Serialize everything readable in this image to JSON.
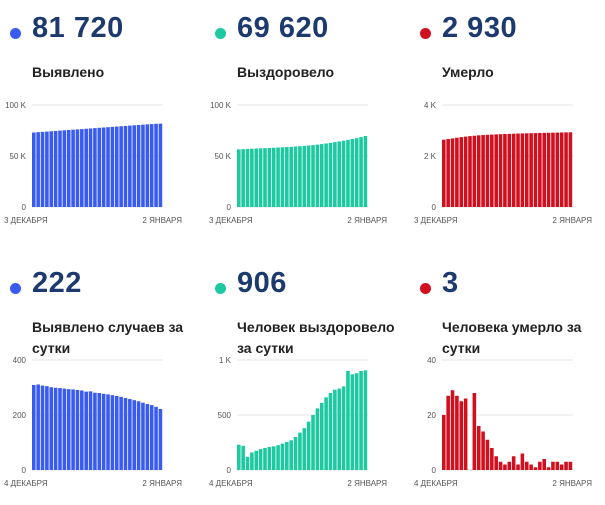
{
  "panels": [
    {
      "value": "81 720",
      "label": "Выявлено",
      "color": "#3a5bf0",
      "chart_data": {
        "type": "bar",
        "ylim": [
          0,
          100000
        ],
        "yticks": [
          {
            "v": 0,
            "label": "0"
          },
          {
            "v": 50000,
            "label": "50 K"
          },
          {
            "v": 100000,
            "label": "100 K"
          }
        ],
        "xlabel_start": "3 ДЕКАБРЯ",
        "xlabel_end": "2 ЯНВАРЯ",
        "values": [
          73030,
          73340,
          73640,
          73950,
          74260,
          74560,
          74870,
          75180,
          75480,
          75790,
          76100,
          76400,
          76710,
          77020,
          77320,
          77630,
          77940,
          78240,
          78550,
          78860,
          79160,
          79470,
          79780,
          80080,
          80390,
          80700,
          81000,
          81310,
          81620,
          81720
        ]
      }
    },
    {
      "value": "69 620",
      "label": "Выздоровело",
      "color": "#1dc9a0",
      "chart_data": {
        "type": "bar",
        "ylim": [
          0,
          100000
        ],
        "yticks": [
          {
            "v": 0,
            "label": "0"
          },
          {
            "v": 50000,
            "label": "50 K"
          },
          {
            "v": 100000,
            "label": "100 K"
          }
        ],
        "xlabel_start": "3 ДЕКАБРЯ",
        "xlabel_end": "2 ЯНВАРЯ",
        "values": [
          56500,
          56700,
          56900,
          57100,
          57300,
          57500,
          57700,
          57900,
          58100,
          58300,
          58500,
          58750,
          59000,
          59300,
          59600,
          59900,
          60300,
          60700,
          61200,
          61700,
          62300,
          62900,
          63600,
          64300,
          65000,
          65800,
          66600,
          67500,
          68500,
          69620
        ]
      }
    },
    {
      "value": "2 930",
      "label": "Умерло",
      "color": "#d0101e",
      "chart_data": {
        "type": "bar",
        "ylim": [
          0,
          4000
        ],
        "yticks": [
          {
            "v": 0,
            "label": "0"
          },
          {
            "v": 2000,
            "label": "2 K"
          },
          {
            "v": 4000,
            "label": "4 K"
          }
        ],
        "xlabel_start": "3 ДЕКАБРЯ",
        "xlabel_end": "2 ЯНВАРЯ",
        "values": [
          2640,
          2665,
          2690,
          2715,
          2740,
          2760,
          2780,
          2795,
          2810,
          2822,
          2832,
          2840,
          2848,
          2855,
          2862,
          2868,
          2874,
          2880,
          2885,
          2890,
          2895,
          2899,
          2903,
          2907,
          2911,
          2915,
          2919,
          2923,
          2927,
          2930
        ]
      }
    },
    {
      "value": "222",
      "label": "Выявлено случаев за сутки",
      "color": "#3a5bf0",
      "chart_data": {
        "type": "bar",
        "ylim": [
          0,
          400
        ],
        "yticks": [
          {
            "v": 0,
            "label": "0"
          },
          {
            "v": 200,
            "label": "200"
          },
          {
            "v": 400,
            "label": "400"
          }
        ],
        "xlabel_start": "4 ДЕКАБРЯ",
        "xlabel_end": "2 ЯНВАРЯ",
        "values": [
          309,
          311,
          307,
          305,
          301,
          299,
          298,
          296,
          294,
          293,
          291,
          289,
          285,
          286,
          281,
          280,
          277,
          275,
          272,
          269,
          266,
          262,
          258,
          254,
          250,
          245,
          240,
          236,
          230,
          222
        ]
      }
    },
    {
      "value": "906",
      "label": "Человек выздоровело за сутки",
      "color": "#1dc9a0",
      "chart_data": {
        "type": "bar",
        "ylim": [
          0,
          1000
        ],
        "yticks": [
          {
            "v": 0,
            "label": "0"
          },
          {
            "v": 500,
            "label": "500"
          },
          {
            "v": 1000,
            "label": "1 K"
          }
        ],
        "xlabel_start": "4 ДЕКАБРЯ",
        "xlabel_end": "2 ЯНВАРЯ",
        "values": [
          230,
          220,
          120,
          160,
          175,
          190,
          200,
          210,
          215,
          225,
          240,
          255,
          270,
          300,
          340,
          380,
          440,
          500,
          560,
          610,
          660,
          700,
          730,
          740,
          760,
          900,
          870,
          880,
          900,
          906
        ]
      }
    },
    {
      "value": "3",
      "label": "Человека умерло за сутки",
      "color": "#d0101e",
      "chart_data": {
        "type": "bar",
        "ylim": [
          0,
          40
        ],
        "yticks": [
          {
            "v": 0,
            "label": "0"
          },
          {
            "v": 20,
            "label": "20"
          },
          {
            "v": 40,
            "label": "40"
          }
        ],
        "xlabel_start": "4 ДЕКАБРЯ",
        "xlabel_end": "2 ЯНВАРЯ",
        "values": [
          20,
          27,
          29,
          27,
          25,
          26,
          0,
          28,
          16,
          14,
          11,
          8,
          5,
          3,
          2,
          3,
          5,
          2,
          6,
          3,
          2,
          1,
          3,
          4,
          1,
          3,
          3,
          2,
          3,
          3
        ]
      }
    }
  ]
}
